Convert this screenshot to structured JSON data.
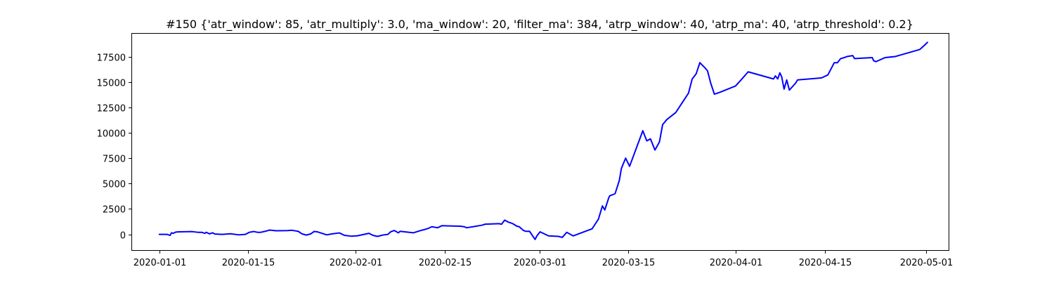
{
  "chart_data": {
    "type": "line",
    "title": "#150 {'atr_window': 85, 'atr_multiply': 3.0, 'ma_window': 20, 'filter_ma': 384, 'atrp_window': 40, 'atrp_ma': 40, 'atrp_threshold': 0.2}",
    "xlabel": "",
    "ylabel": "",
    "xlim": [
      "2019-12-27T17:00",
      "2020-05-04T13:00"
    ],
    "ylim": [
      -1550,
      19750
    ],
    "grid": false,
    "legend": "none",
    "x_ticks": [
      "2020-01-01",
      "2020-01-15",
      "2020-02-01",
      "2020-02-15",
      "2020-03-01",
      "2020-03-15",
      "2020-04-01",
      "2020-04-15",
      "2020-05-01"
    ],
    "y_ticks": [
      0,
      2500,
      5000,
      7500,
      10000,
      12500,
      15000,
      17500
    ],
    "y_tick_labels": [
      "0",
      "2500",
      "5000",
      "7500",
      "10000",
      "12500",
      "15000",
      "17500"
    ],
    "colors": {
      "line": "#0000ff",
      "axes": "#000000",
      "background": "#ffffff"
    },
    "series": [
      {
        "x": [
          "2020-01-01T00:00",
          "2020-01-01T05:00",
          "2020-01-02T05:00",
          "2020-01-02T17:00",
          "2020-01-02T22:00",
          "2020-01-03T05:00",
          "2020-01-03T14:00",
          "2020-01-04T05:00",
          "2020-01-06T05:00",
          "2020-01-07T02:00",
          "2020-01-07T17:00",
          "2020-01-08T05:00",
          "2020-01-08T10:00",
          "2020-01-08T22:00",
          "2020-01-09T10:00",
          "2020-01-09T19:00",
          "2020-01-10T05:00",
          "2020-01-10T12:00",
          "2020-01-11T00:00",
          "2020-01-12T05:00",
          "2020-01-13T14:00",
          "2020-01-14T14:00",
          "2020-01-15T05:00",
          "2020-01-15T22:00",
          "2020-01-16T12:00",
          "2020-01-17T00:00",
          "2020-01-17T17:00",
          "2020-01-18T10:00",
          "2020-01-19T10:00",
          "2020-01-21T05:00",
          "2020-01-21T22:00",
          "2020-01-22T22:00",
          "2020-01-23T12:00",
          "2020-01-24T05:00",
          "2020-01-24T22:00",
          "2020-01-25T10:00",
          "2020-01-25T22:00",
          "2020-01-27T10:00",
          "2020-01-28T07:00",
          "2020-01-29T10:00",
          "2020-01-30T05:00",
          "2020-01-31T07:00",
          "2020-02-01T00:00",
          "2020-02-01T05:00",
          "2020-02-03T02:00",
          "2020-02-03T17:00",
          "2020-02-04T10:00",
          "2020-02-04T17:00",
          "2020-02-05T10:00",
          "2020-02-06T02:00",
          "2020-02-06T12:00",
          "2020-02-07T02:00",
          "2020-02-07T17:00",
          "2020-02-08T00:00",
          "2020-02-10T02:00",
          "2020-02-11T02:00",
          "2020-02-12T00:00",
          "2020-02-12T12:00",
          "2020-02-13T00:00",
          "2020-02-13T22:00",
          "2020-02-14T14:00",
          "2020-02-17T12:00",
          "2020-02-18T02:00",
          "2020-02-18T12:00",
          "2020-02-20T00:00",
          "2020-02-20T10:00",
          "2020-02-20T22:00",
          "2020-02-21T10:00",
          "2020-02-23T14:00",
          "2020-02-24T00:00",
          "2020-02-24T12:00",
          "2020-02-25T02:00",
          "2020-02-25T14:00",
          "2020-02-25T22:00",
          "2020-02-26T10:00",
          "2020-02-26T19:00",
          "2020-02-27T10:00",
          "2020-02-27T19:00",
          "2020-02-28T10:00",
          "2020-02-29T07:00",
          "2020-02-29T14:00",
          "2020-03-01T02:00",
          "2020-03-02T10:00",
          "2020-03-04T00:00",
          "2020-03-04T14:00",
          "2020-03-05T07:00",
          "2020-03-06T07:00",
          "2020-03-09T07:00",
          "2020-03-10T07:00",
          "2020-03-10T22:00",
          "2020-03-11T07:00",
          "2020-03-11T22:00",
          "2020-03-12T02:00",
          "2020-03-12T22:00",
          "2020-03-13T14:00",
          "2020-03-13T22:00",
          "2020-03-14T14:00",
          "2020-03-15T05:00",
          "2020-03-17T07:00",
          "2020-03-17T22:00",
          "2020-03-18T12:00",
          "2020-03-19T05:00",
          "2020-03-19T22:00",
          "2020-03-20T10:00",
          "2020-03-21T02:00",
          "2020-03-22T12:00",
          "2020-03-24T12:00",
          "2020-03-25T02:00",
          "2020-03-25T17:00",
          "2020-03-26T07:00",
          "2020-03-27T02:00",
          "2020-03-27T12:00",
          "2020-03-28T00:00",
          "2020-03-28T14:00",
          "2020-03-29T12:00",
          "2020-03-31T22:00",
          "2020-04-01T19:00",
          "2020-04-02T22:00",
          "2020-04-06T22:00",
          "2020-04-07T05:00",
          "2020-04-07T14:00",
          "2020-04-07T22:00",
          "2020-04-08T05:00",
          "2020-04-08T14:00",
          "2020-04-09T00:00",
          "2020-04-09T10:00",
          "2020-04-10T10:00",
          "2020-04-10T17:00",
          "2020-04-14T12:00",
          "2020-04-15T12:00",
          "2020-04-16T12:00",
          "2020-04-17T00:00",
          "2020-04-17T12:00",
          "2020-04-18T02:00",
          "2020-04-18T12:00",
          "2020-04-19T10:00",
          "2020-04-19T17:00",
          "2020-04-22T12:00",
          "2020-04-22T17:00",
          "2020-04-23T02:00",
          "2020-04-24T12:00",
          "2020-04-26T02:00",
          "2020-04-30T00:00",
          "2020-04-30T17:00",
          "2020-05-01T05:00"
        ],
        "y": [
          0,
          0,
          0,
          -100,
          150,
          100,
          220,
          250,
          270,
          200,
          200,
          100,
          200,
          50,
          150,
          20,
          20,
          10,
          0,
          60,
          -50,
          0,
          200,
          280,
          200,
          200,
          300,
          420,
          350,
          370,
          400,
          300,
          50,
          -70,
          50,
          280,
          250,
          -50,
          50,
          140,
          -100,
          -180,
          -150,
          -150,
          100,
          -100,
          -200,
          -160,
          -50,
          0,
          250,
          380,
          150,
          300,
          150,
          350,
          500,
          600,
          750,
          650,
          850,
          800,
          750,
          650,
          800,
          850,
          900,
          1000,
          1050,
          1000,
          1400,
          1200,
          1100,
          1000,
          800,
          750,
          400,
          300,
          300,
          -500,
          -150,
          250,
          -150,
          -200,
          -300,
          200,
          -150,
          550,
          1500,
          2800,
          2400,
          3600,
          3800,
          4000,
          5300,
          6500,
          7500,
          6700,
          10200,
          9200,
          9400,
          8300,
          9100,
          10800,
          11300,
          12000,
          13900,
          15300,
          15800,
          16900,
          16400,
          16100,
          14900,
          13800,
          14000,
          14600,
          15200,
          16000,
          15300,
          15600,
          15300,
          15900,
          15500,
          14300,
          15200,
          14200,
          14900,
          15200,
          15400,
          15700,
          16900,
          16900,
          17300,
          17400,
          17500,
          17600,
          17300,
          17400,
          17100,
          17000,
          17400,
          17500,
          18200,
          18600,
          18900
        ]
      }
    ]
  }
}
